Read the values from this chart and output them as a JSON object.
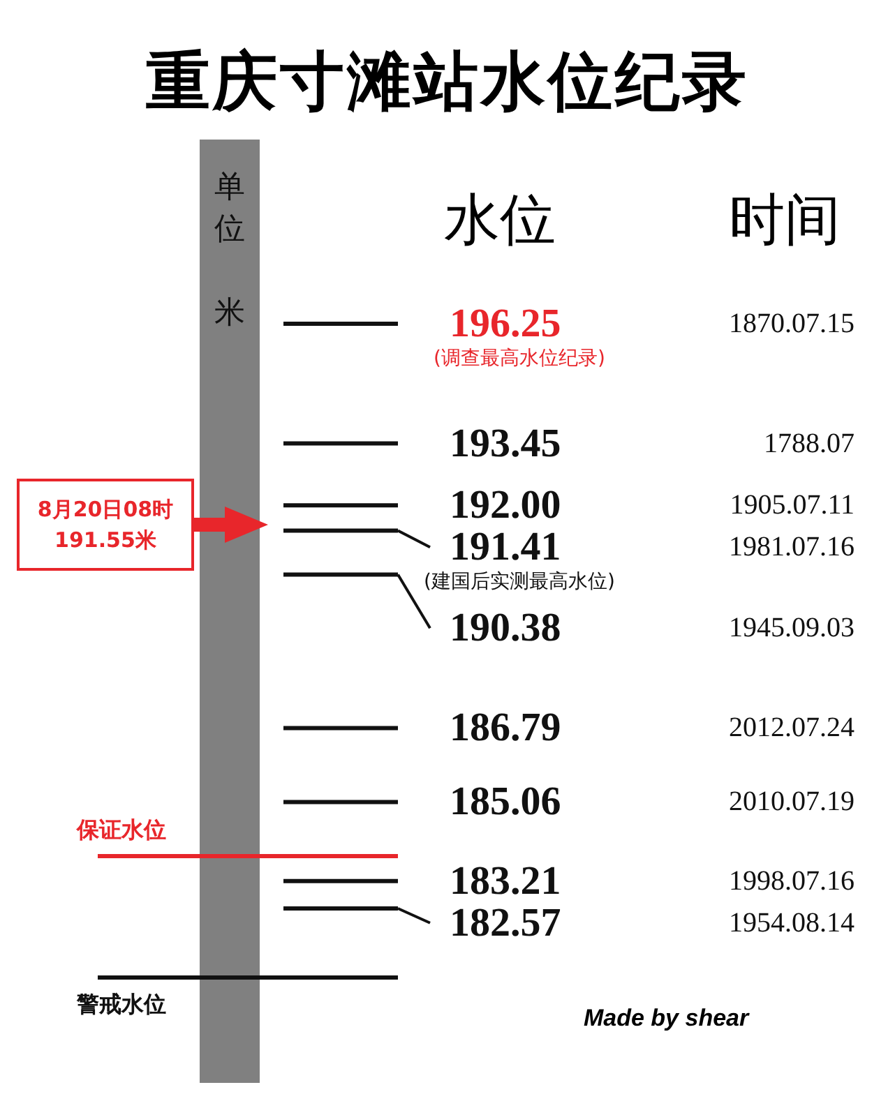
{
  "chart_data": {
    "type": "other",
    "title": "重庆寸滩站水位纪录",
    "ylabel": "单位米",
    "categories": [
      "1870.07.15",
      "1788.07",
      "1905.07.11",
      "1981.07.16",
      "1945.09.03",
      "2012.07.24",
      "2010.07.19",
      "1998.07.16",
      "1954.08.14"
    ],
    "values": [
      196.25,
      193.45,
      192.0,
      191.41,
      190.38,
      186.79,
      185.06,
      183.21,
      182.57
    ],
    "value_labels": [
      "196.25",
      "193.45",
      "192.00",
      "191.41",
      "190.38",
      "186.79",
      "185.06",
      "183.21",
      "182.57"
    ],
    "colors": [
      "#e8262b",
      "#111111",
      "#111111",
      "#111111",
      "#111111",
      "#111111",
      "#111111",
      "#111111",
      "#111111"
    ],
    "annotations": [
      "水位",
      "时间",
      "Made by shear",
      "保证水位",
      "警戒水位",
      "8月20日08时 191.55米",
      {
        "text": "(调查最高水位纪录)",
        "x": "1870.07.15"
      },
      {
        "text": "(建国后实测最高水位)",
        "x": "1981.07.16"
      }
    ]
  }
}
